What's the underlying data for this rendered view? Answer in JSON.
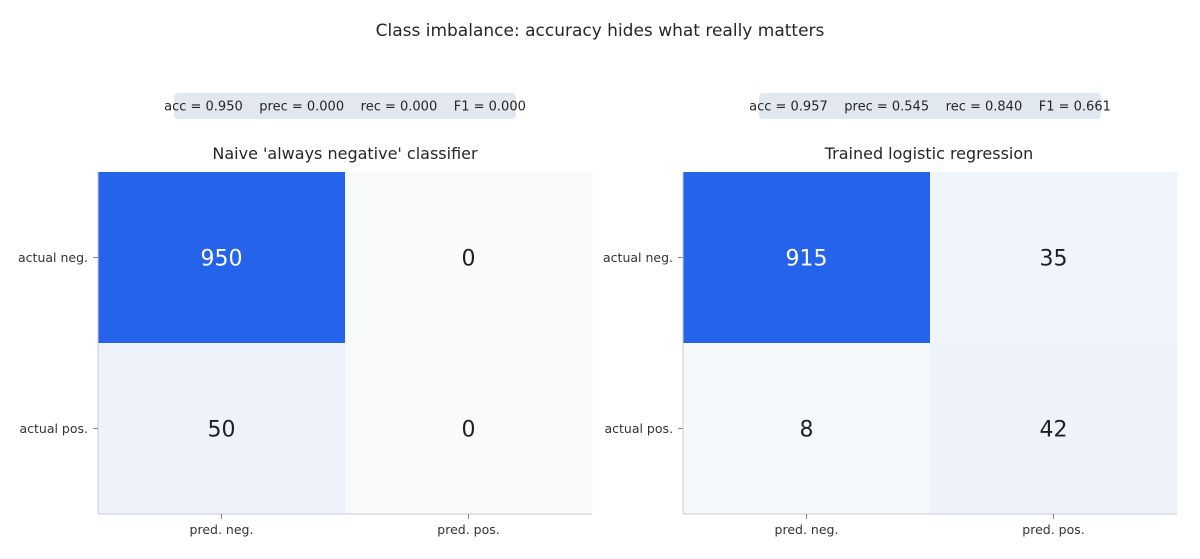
{
  "figure": {
    "title": "Class imbalance: accuracy hides what really matters"
  },
  "colors": {
    "cmap_low": "#f8fafc",
    "cmap_high": "#2563eb",
    "axis_line": "#c9ced6",
    "metrics_box": "#e2e8f0",
    "text_dark": "#1f1f1f",
    "text_light": "#ffffff"
  },
  "chart_data": [
    {
      "type": "heatmap",
      "title": "Naive 'always negative' classifier",
      "metrics_text": "acc = 0.950    prec = 0.000    rec = 0.000    F1 = 0.000",
      "rows": [
        "actual neg.",
        "actual pos."
      ],
      "columns": [
        "pred. neg.",
        "pred. pos."
      ],
      "values": [
        [
          950,
          0
        ],
        [
          50,
          0
        ]
      ],
      "value_range": [
        0,
        950
      ]
    },
    {
      "type": "heatmap",
      "title": "Trained logistic regression",
      "metrics_text": "acc = 0.957    prec = 0.545    rec = 0.840    F1 = 0.661",
      "rows": [
        "actual neg.",
        "actual pos."
      ],
      "columns": [
        "pred. neg.",
        "pred. pos."
      ],
      "values": [
        [
          915,
          35
        ],
        [
          8,
          42
        ]
      ],
      "value_range": [
        0,
        915
      ]
    }
  ]
}
